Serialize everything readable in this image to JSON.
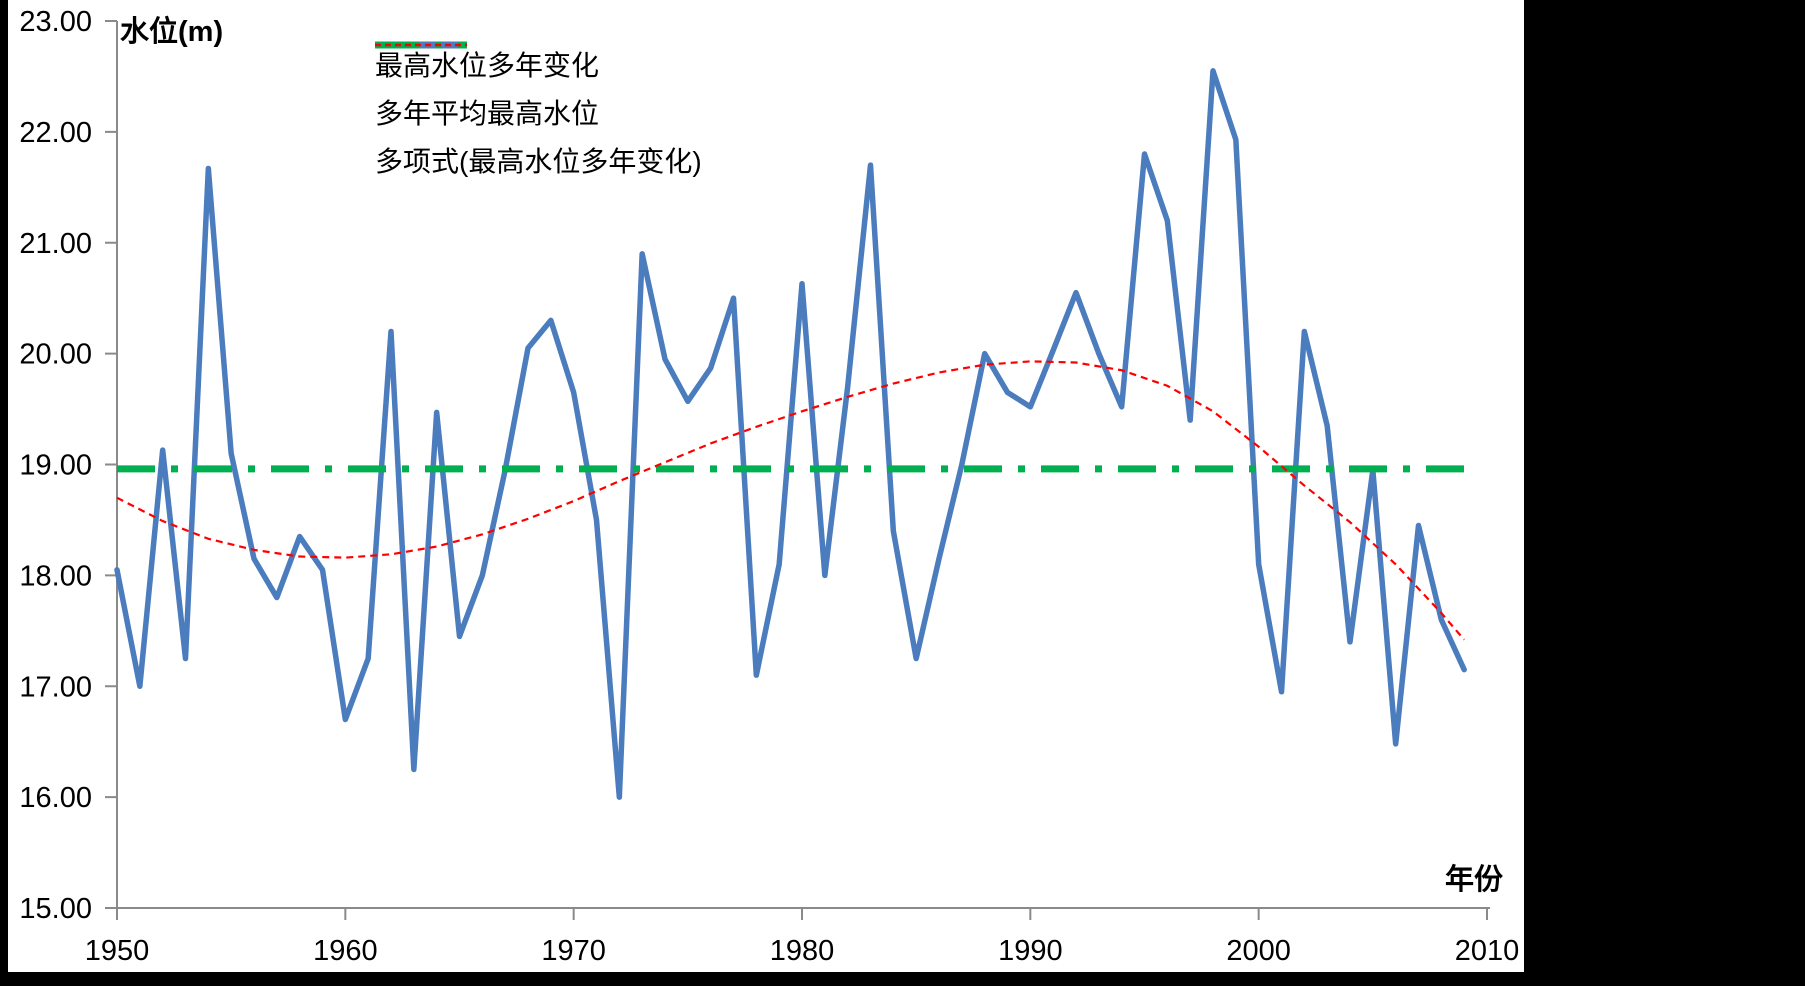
{
  "page": {
    "background": "#000000",
    "panel_background": "#FFFFFF",
    "axis_color": "#8A8A8A",
    "text_color": "#000000"
  },
  "chart_data": {
    "type": "line",
    "title": "",
    "y_axis": {
      "label": "水位(m)",
      "min": 15.0,
      "max": 23.0,
      "tick_step": 1.0,
      "tick_labels": [
        "23.00",
        "22.00",
        "21.00",
        "20.00",
        "19.00",
        "18.00",
        "17.00",
        "16.00",
        "15.00"
      ]
    },
    "x_axis": {
      "label": "年份",
      "min": 1950,
      "max": 2010,
      "tick_step": 10,
      "tick_labels": [
        "1950",
        "1960",
        "1970",
        "1980",
        "1990",
        "2000",
        "2010"
      ]
    },
    "grid": "off",
    "legend_position": "top-left-inside",
    "series": [
      {
        "name": "最高水位多年变化",
        "kind": "data-line",
        "color": "#4B7CBE",
        "style": "solid",
        "x": [
          1950,
          1951,
          1952,
          1953,
          1954,
          1955,
          1956,
          1957,
          1958,
          1959,
          1960,
          1961,
          1962,
          1963,
          1964,
          1965,
          1966,
          1967,
          1968,
          1969,
          1970,
          1971,
          1972,
          1973,
          1974,
          1975,
          1976,
          1977,
          1978,
          1979,
          1980,
          1981,
          1982,
          1983,
          1984,
          1985,
          1986,
          1987,
          1988,
          1989,
          1990,
          1991,
          1992,
          1993,
          1994,
          1995,
          1996,
          1997,
          1998,
          1999,
          2000,
          2001,
          2002,
          2003,
          2004,
          2005,
          2006,
          2007,
          2008,
          2009
        ],
        "values": [
          18.05,
          17.0,
          19.13,
          17.25,
          21.67,
          19.1,
          18.15,
          17.8,
          18.35,
          18.05,
          16.7,
          17.25,
          20.2,
          16.25,
          19.47,
          17.45,
          18.0,
          18.95,
          20.05,
          20.3,
          19.65,
          18.5,
          16.0,
          20.9,
          19.95,
          19.57,
          19.87,
          20.5,
          17.1,
          18.1,
          20.63,
          18.0,
          19.7,
          21.7,
          18.4,
          17.25,
          18.15,
          19.0,
          20.0,
          19.65,
          19.52,
          20.03,
          20.55,
          20.0,
          19.52,
          21.8,
          21.2,
          19.4,
          22.55,
          21.93,
          18.1,
          16.95,
          20.2,
          19.35,
          17.4,
          18.95,
          16.48,
          18.45,
          17.6,
          17.15
        ]
      },
      {
        "name": "多年平均最高水位",
        "kind": "constant-line",
        "color": "#00AF50",
        "style": "long-dash-dot",
        "value": 18.96,
        "x_start": 1950,
        "x_end": 2009.3
      },
      {
        "name": "多项式(最高水位多年变化)",
        "kind": "trend-line",
        "color": "#FF0000",
        "style": "dotted",
        "x": [
          1950,
          1952,
          1954,
          1956,
          1958,
          1960,
          1962,
          1964,
          1966,
          1968,
          1970,
          1972,
          1974,
          1976,
          1978,
          1980,
          1982,
          1984,
          1986,
          1988,
          1990,
          1992,
          1994,
          1996,
          1998,
          2000,
          2002,
          2004,
          2006,
          2008,
          2009
        ],
        "values": [
          18.7,
          18.49,
          18.33,
          18.23,
          18.17,
          18.16,
          18.19,
          18.26,
          18.37,
          18.51,
          18.67,
          18.85,
          19.02,
          19.19,
          19.34,
          19.48,
          19.61,
          19.73,
          19.83,
          19.9,
          19.93,
          19.92,
          19.85,
          19.71,
          19.48,
          19.16,
          18.81,
          18.48,
          18.1,
          17.66,
          17.42
        ]
      }
    ]
  }
}
